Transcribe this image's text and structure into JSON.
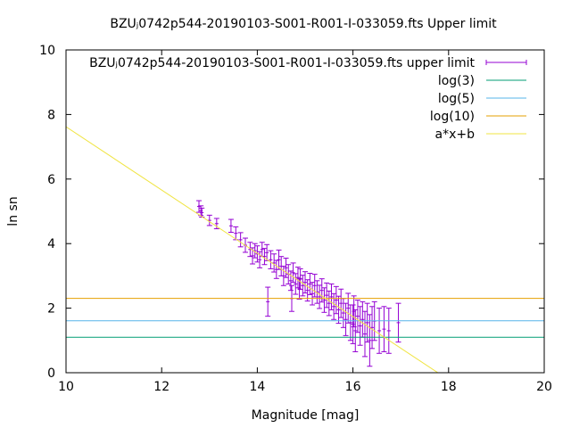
{
  "chart_data": {
    "type": "scatter",
    "title": "BZUⱼ0742p544-20190103-S001-R001-I-033059.fts Upper limit",
    "xlabel": "Magnitude [mag]",
    "ylabel": "ln sn",
    "xlim": [
      10,
      20
    ],
    "ylim": [
      0,
      10
    ],
    "x_ticks": [
      "10",
      "12",
      "14",
      "16",
      "18",
      "20"
    ],
    "y_ticks": [
      "0",
      "2",
      "4",
      "6",
      "8",
      "10"
    ],
    "grid": false,
    "legend_position": "top-right",
    "series": [
      {
        "name": "BZUⱼ0742p544-20190103-S001-R001-I-033059.fts upper limit",
        "kind": "errorbar",
        "color": "#9400d3",
        "points": [
          [
            12.78,
            5.15,
            0.18
          ],
          [
            12.82,
            5.02,
            0.15
          ],
          [
            12.84,
            4.96,
            0.14
          ],
          [
            13.0,
            4.72,
            0.16
          ],
          [
            13.15,
            4.62,
            0.16
          ],
          [
            13.45,
            4.55,
            0.2
          ],
          [
            13.55,
            4.32,
            0.2
          ],
          [
            13.65,
            4.12,
            0.22
          ],
          [
            13.75,
            3.95,
            0.22
          ],
          [
            13.85,
            3.82,
            0.22
          ],
          [
            13.9,
            3.62,
            0.25
          ],
          [
            13.95,
            3.78,
            0.22
          ],
          [
            14.0,
            3.68,
            0.25
          ],
          [
            14.05,
            3.5,
            0.25
          ],
          [
            14.1,
            3.82,
            0.22
          ],
          [
            14.15,
            3.6,
            0.25
          ],
          [
            14.2,
            3.72,
            0.25
          ],
          [
            14.22,
            2.2,
            0.45
          ],
          [
            14.28,
            3.5,
            0.28
          ],
          [
            14.35,
            3.4,
            0.28
          ],
          [
            14.4,
            3.2,
            0.28
          ],
          [
            14.45,
            3.5,
            0.3
          ],
          [
            14.5,
            3.3,
            0.3
          ],
          [
            14.55,
            3.0,
            0.3
          ],
          [
            14.6,
            3.25,
            0.3
          ],
          [
            14.65,
            3.05,
            0.3
          ],
          [
            14.7,
            2.85,
            0.3
          ],
          [
            14.72,
            2.3,
            0.4
          ],
          [
            14.75,
            3.1,
            0.3
          ],
          [
            14.8,
            2.75,
            0.32
          ],
          [
            14.85,
            2.95,
            0.32
          ],
          [
            14.88,
            2.6,
            0.32
          ],
          [
            14.9,
            2.9,
            0.32
          ],
          [
            14.95,
            2.7,
            0.32
          ],
          [
            15.0,
            2.8,
            0.33
          ],
          [
            15.05,
            2.55,
            0.33
          ],
          [
            15.1,
            2.75,
            0.33
          ],
          [
            15.15,
            2.45,
            0.35
          ],
          [
            15.2,
            2.7,
            0.35
          ],
          [
            15.25,
            2.5,
            0.35
          ],
          [
            15.3,
            2.35,
            0.36
          ],
          [
            15.35,
            2.55,
            0.36
          ],
          [
            15.4,
            2.25,
            0.38
          ],
          [
            15.45,
            2.4,
            0.38
          ],
          [
            15.5,
            2.15,
            0.38
          ],
          [
            15.55,
            2.35,
            0.4
          ],
          [
            15.6,
            2.05,
            0.4
          ],
          [
            15.65,
            2.25,
            0.42
          ],
          [
            15.7,
            1.95,
            0.42
          ],
          [
            15.75,
            2.15,
            0.44
          ],
          [
            15.8,
            1.85,
            0.45
          ],
          [
            15.85,
            1.65,
            0.5
          ],
          [
            15.9,
            2.0,
            0.46
          ],
          [
            15.95,
            1.55,
            0.55
          ],
          [
            16.0,
            1.5,
            0.6
          ],
          [
            16.02,
            1.9,
            0.48
          ],
          [
            16.05,
            1.3,
            0.65
          ],
          [
            16.1,
            1.75,
            0.5
          ],
          [
            16.15,
            1.45,
            0.6
          ],
          [
            16.2,
            1.65,
            0.55
          ],
          [
            16.25,
            1.2,
            0.7
          ],
          [
            16.3,
            1.55,
            0.6
          ],
          [
            16.35,
            1.0,
            0.8
          ],
          [
            16.4,
            1.4,
            0.65
          ],
          [
            16.45,
            1.6,
            0.6
          ],
          [
            16.55,
            1.3,
            0.7
          ],
          [
            16.65,
            1.35,
            0.7
          ],
          [
            16.75,
            1.3,
            0.7
          ],
          [
            16.95,
            1.55,
            0.6
          ]
        ]
      },
      {
        "name": "log(3)",
        "kind": "hline",
        "value": 1.0986,
        "color": "#009e73"
      },
      {
        "name": "log(5)",
        "kind": "hline",
        "value": 1.6094,
        "color": "#56b4e9"
      },
      {
        "name": "log(10)",
        "kind": "hline",
        "value": 2.3026,
        "color": "#e69f00"
      },
      {
        "name": "a*x+b",
        "kind": "fit_line",
        "slope": -0.98,
        "intercept": 17.42,
        "color": "#f0e442"
      }
    ]
  }
}
